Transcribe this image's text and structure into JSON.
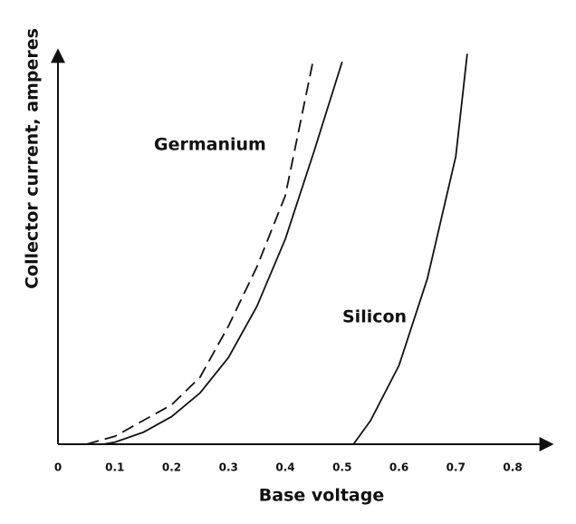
{
  "chart_data": {
    "type": "line",
    "xlabel": "Base voltage",
    "ylabel": "Collector current, amperes",
    "xlim": [
      0,
      0.87
    ],
    "ylim": [
      0,
      1
    ],
    "xticks": [
      0,
      0.1,
      0.2,
      0.3,
      0.4,
      0.5,
      0.6,
      0.7,
      0.8
    ],
    "annotations": [
      "Germanium",
      "Silicon"
    ],
    "series": [
      {
        "color": "#111111",
        "dashed": true,
        "x": [
          0.05,
          0.1,
          0.15,
          0.2,
          0.25,
          0.3,
          0.35,
          0.4,
          0.45
        ],
        "values": [
          0,
          0.02,
          0.06,
          0.1,
          0.17,
          0.3,
          0.45,
          0.63,
          0.98
        ]
      },
      {
        "color": "#111111",
        "dashed": false,
        "x": [
          0.08,
          0.1,
          0.15,
          0.2,
          0.25,
          0.3,
          0.35,
          0.4,
          0.45,
          0.5
        ],
        "values": [
          0,
          0.005,
          0.03,
          0.07,
          0.13,
          0.22,
          0.35,
          0.52,
          0.74,
          0.97
        ]
      },
      {
        "color": "#111111",
        "dashed": false,
        "x": [
          0.52,
          0.55,
          0.6,
          0.65,
          0.7,
          0.72
        ],
        "values": [
          0,
          0.06,
          0.2,
          0.42,
          0.73,
          0.99
        ]
      }
    ]
  }
}
